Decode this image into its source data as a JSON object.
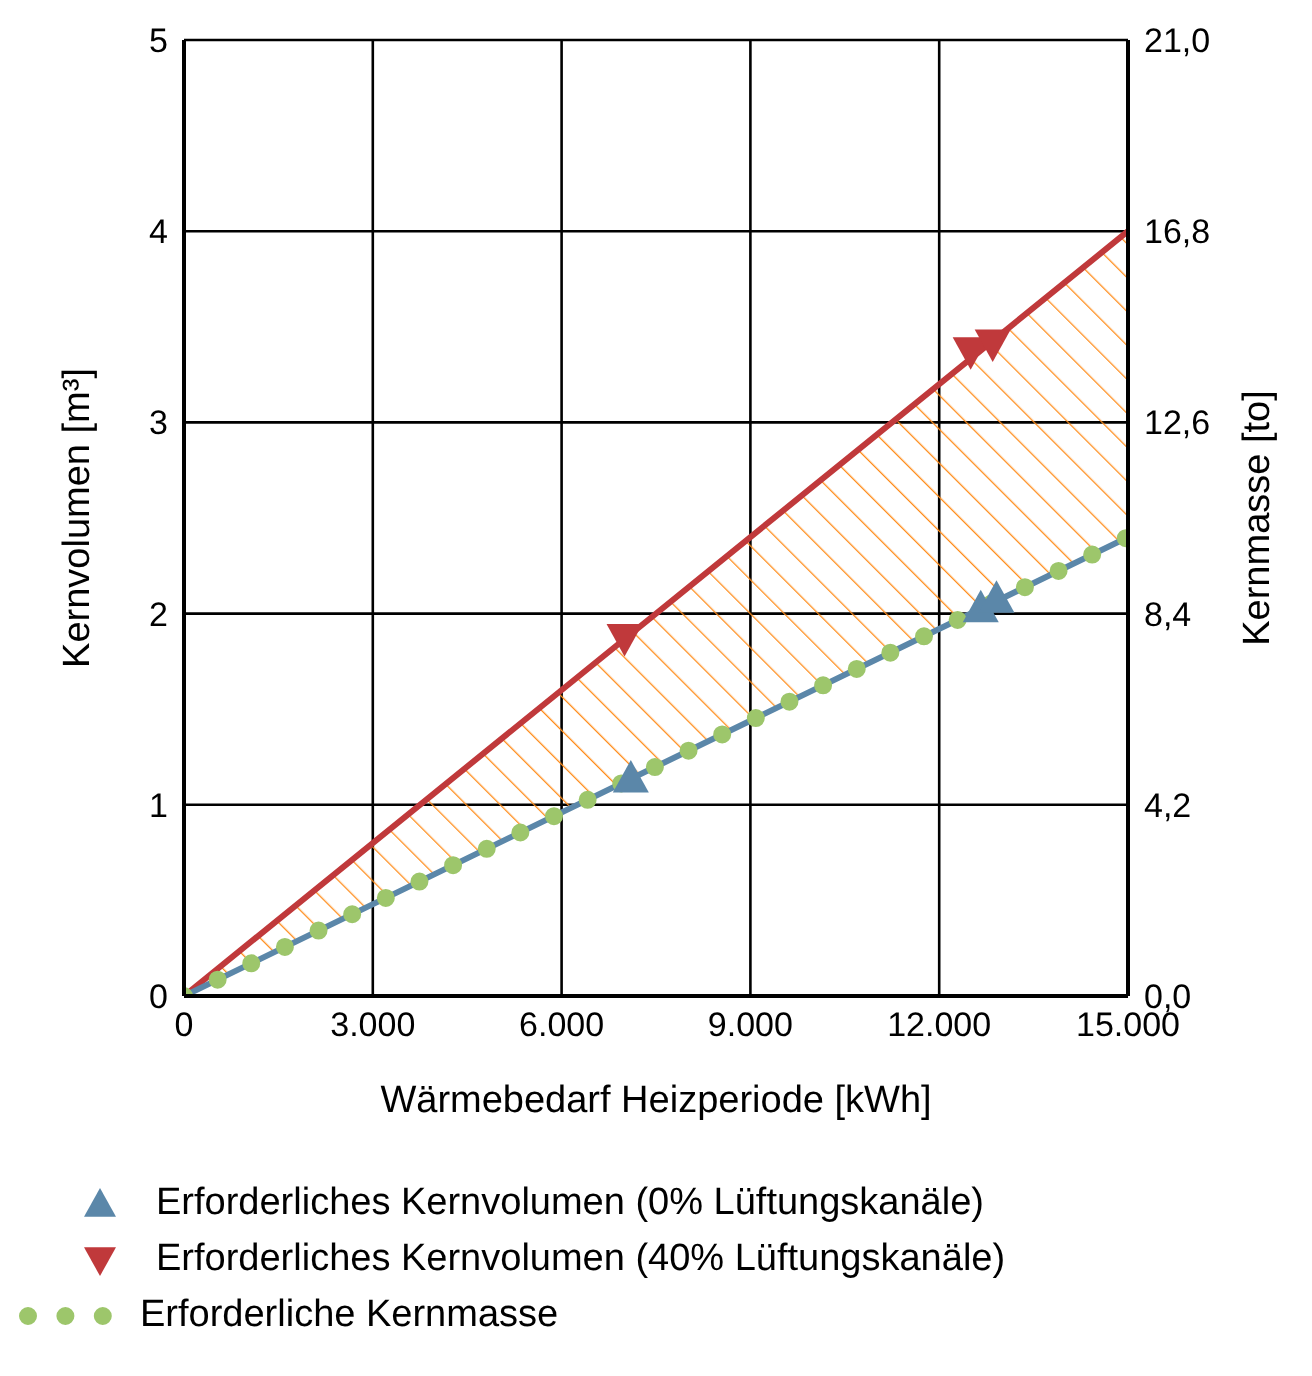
{
  "chart_data": {
    "type": "line",
    "xlabel": "Wärmebedarf Heizperiode [kWh]",
    "ylabel": "Kernvolumen [m³]",
    "y2label": "Kernmasse [to]",
    "xlim": [
      0,
      15000
    ],
    "xticks": [
      0,
      {
        "value": 3000,
        "label": "3.000"
      },
      {
        "value": 6000,
        "label": "6.000"
      },
      {
        "value": 9000,
        "label": "9.000"
      },
      {
        "value": 12000,
        "label": "12.000"
      },
      {
        "value": 15000,
        "label": "15.000"
      }
    ],
    "ylim": [
      0,
      5
    ],
    "yticks": [
      0,
      1,
      2,
      3,
      4,
      5
    ],
    "y2lim": [
      0,
      21
    ],
    "y2ticks": [
      {
        "value": 0,
        "label": "0,0"
      },
      {
        "value": 4.2,
        "label": "4,2"
      },
      {
        "value": 8.4,
        "label": "8,4"
      },
      {
        "value": 12.6,
        "label": "12,6"
      },
      {
        "value": 16.8,
        "label": "16,8"
      },
      {
        "value": 21,
        "label": "21,0"
      }
    ],
    "grid": true,
    "legend": "bottom",
    "series": [
      {
        "color": "#c0393b",
        "x": [
          0,
          15000
        ],
        "values": [
          0,
          4.0
        ],
        "lower": [
          0,
          2.4
        ],
        "upper": [
          0,
          4.0
        ]
      },
      {
        "color": "#5b87a9",
        "x": [
          0,
          15000
        ],
        "values": [
          0,
          2.4
        ]
      },
      {
        "type": "scatter",
        "name": "Erforderliches Kernvolumen (0% Lüftungskanäle)",
        "color": "#5b87a9",
        "marker": "triangle",
        "x": [
          7100,
          12660,
          12910
        ],
        "values": [
          1.14,
          2.03,
          2.08
        ]
      },
      {
        "type": "scatter",
        "name": "Erforderliches Kernvolumen (40% Lüftungskanäle)",
        "color": "#c0393b",
        "marker": "triangle-down",
        "x": [
          7000,
          12500,
          12850
        ],
        "values": [
          1.87,
          3.37,
          3.41
        ]
      },
      {
        "name": "Erforderliche Kernmasse",
        "color": "#9dc66b",
        "axis": "y2",
        "line_style": "dotted",
        "x": [
          0,
          15000
        ],
        "values": [
          0,
          10.08
        ]
      }
    ]
  }
}
